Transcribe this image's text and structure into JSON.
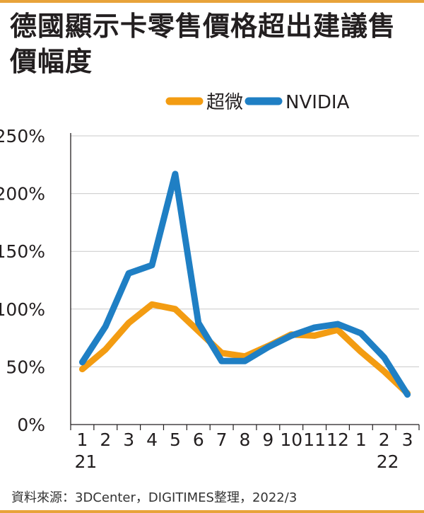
{
  "title": "德國顯示卡零售價格超出建議售價幅度",
  "source": "資料來源：3DCenter，DIGITIMES整理，2022/3",
  "chart_data": {
    "type": "line",
    "x_labels": [
      "1",
      "2",
      "3",
      "4",
      "5",
      "6",
      "7",
      "8",
      "9",
      "10",
      "11",
      "12",
      "1",
      "2",
      "3"
    ],
    "year_labels": [
      {
        "index": 0,
        "label": "21"
      },
      {
        "index": 13,
        "label": "22"
      }
    ],
    "y_ticks": [
      "0%",
      "50%",
      "100%",
      "150%",
      "200%",
      "250%"
    ],
    "ylim": [
      0,
      250
    ],
    "grid": true,
    "legend_position": "top",
    "series": [
      {
        "name": "超微",
        "color": "#f39c12",
        "x": [
          0.5,
          1.5,
          2.5,
          3.5,
          4.5,
          5.5,
          6.5,
          7.5,
          8.5,
          9.5,
          10.5,
          11.5,
          12.5,
          13.5,
          14.5
        ],
        "values": [
          48,
          65,
          88,
          104,
          100,
          81,
          62,
          59,
          68,
          78,
          77,
          82,
          63,
          46,
          27
        ]
      },
      {
        "name": "NVIDIA",
        "color": "#1f7fc4",
        "x": [
          0.5,
          1.5,
          2.5,
          3.5,
          4.5,
          5.5,
          6.5,
          7.5,
          8.5,
          9.5,
          10.5,
          11.5,
          12.5,
          13.5,
          14.5
        ],
        "values": [
          54,
          85,
          131,
          138,
          217,
          88,
          55,
          55,
          67,
          77,
          84,
          87,
          79,
          58,
          26
        ]
      }
    ]
  }
}
